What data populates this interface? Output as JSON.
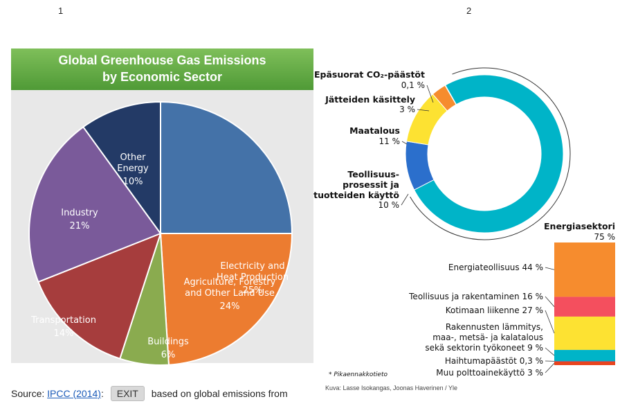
{
  "panel_numbers": [
    "1",
    "2"
  ],
  "left": {
    "title_line1": "Global Greenhouse Gas Emissions",
    "title_line2": "by Economic Sector",
    "source_prefix": "Source: ",
    "source_link": "IPCC (2014)",
    "source_colon": ":",
    "exit_label": "EXIT",
    "source_suffix": "based on global emissions from"
  },
  "right": {
    "footnote": "* Pikaennakkotieto",
    "credit": "Kuva: Lasse Isokangas, Joonas Haverinen / Yle"
  },
  "chart_data": [
    {
      "type": "pie",
      "title": "Global Greenhouse Gas Emissions by Economic Sector",
      "slices": [
        {
          "lines": [
            "Electricity and",
            "Heat Production"
          ],
          "value": 25,
          "value_label": "25%",
          "color": "#4472a8"
        },
        {
          "lines": [
            "Agriculture, Forestry",
            "and Other Land Use"
          ],
          "value": 24,
          "value_label": "24%",
          "color": "#ec7c30"
        },
        {
          "lines": [
            "Buildings"
          ],
          "value": 6,
          "value_label": "6%",
          "color": "#8aab4f"
        },
        {
          "lines": [
            "Transportation"
          ],
          "value": 14,
          "value_label": "14%",
          "color": "#a63d3d"
        },
        {
          "lines": [
            "Industry"
          ],
          "value": 21,
          "value_label": "21%",
          "color": "#7a5a9a"
        },
        {
          "lines": [
            "Other",
            "Energy"
          ],
          "value": 10,
          "value_label": "10%",
          "color": "#233a66"
        }
      ]
    },
    {
      "type": "pie",
      "subtype": "donut",
      "slices": [
        {
          "lines": [
            "Energiasektori"
          ],
          "value": 75,
          "value_label": "75 %",
          "color": "#00b4c8"
        },
        {
          "lines": [
            "Teollisuus-",
            "prosessit ja",
            "tuotteiden käyttö"
          ],
          "value": 10,
          "value_label": "10 %",
          "color": "#2b6fcc"
        },
        {
          "lines": [
            "Maatalous"
          ],
          "value": 11,
          "value_label": "11 %",
          "color": "#fde232"
        },
        {
          "lines": [
            "Jätteiden käsittely"
          ],
          "value": 3,
          "value_label": "3 %",
          "color": "#f68c2e"
        },
        {
          "lines": [
            "Epäsuorat CO₂-päästöt"
          ],
          "value": 0.1,
          "value_label": "0,1 %",
          "color": "#e8e8e8"
        }
      ]
    },
    {
      "type": "bar",
      "subtype": "stacked",
      "title": "Energiasektori",
      "title_value": "75 %",
      "segments": [
        {
          "label": "Energiateollisuus",
          "value": 44,
          "value_label": "44 %",
          "color": "#f68c2e"
        },
        {
          "label": "Teollisuus ja rakentaminen",
          "value": 16,
          "value_label": "16 %",
          "color": "#f44f5e"
        },
        {
          "label": "Kotimaan liikenne",
          "value": 27,
          "value_label": "27 %",
          "color": "#fde232"
        },
        {
          "label": "Rakennusten lämmitys, maa-, metsä- ja kalatalous sekä sektorin työkoneet",
          "lines": [
            "Rakennusten lämmitys,",
            "maa-, metsä- ja kalatalous",
            "sekä sektorin työkoneet 9 %"
          ],
          "value": 9,
          "value_label": "9 %",
          "color": "#00b4c8"
        },
        {
          "label": "Haihtumapäästöt",
          "value": 0.3,
          "value_label": "0,3 %",
          "color": "#2b6fcc"
        },
        {
          "label": "Muu polttoainekäyttö",
          "value": 3,
          "value_label": "3 %",
          "color": "#e8441e"
        }
      ]
    }
  ]
}
